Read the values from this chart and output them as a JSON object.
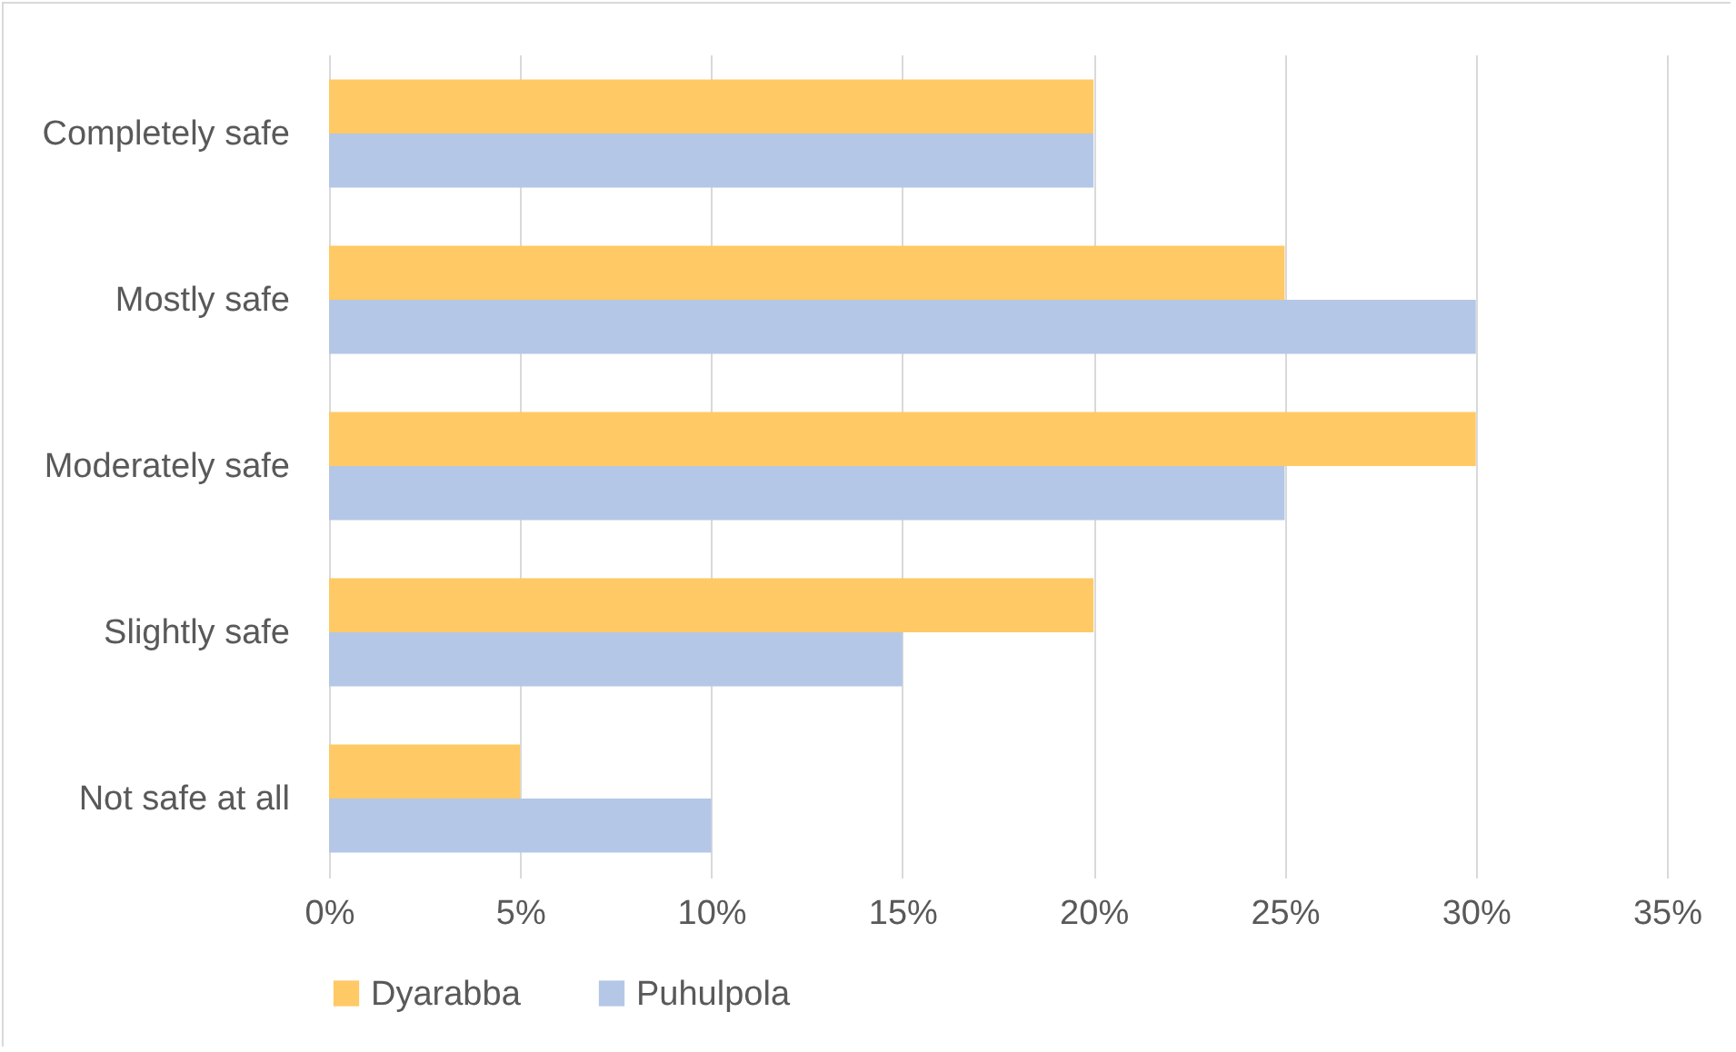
{
  "chart_data": {
    "type": "bar",
    "orientation": "horizontal",
    "categories": [
      "Completely safe",
      "Mostly safe",
      "Moderately safe",
      "Slightly safe",
      "Not safe at all"
    ],
    "series": [
      {
        "name": "Dyarabba",
        "color": "#ffc965",
        "values": [
          20,
          25,
          30,
          20,
          5
        ]
      },
      {
        "name": "Puhulpola",
        "color": "#b4c7e7",
        "values": [
          20,
          30,
          25,
          15,
          10
        ]
      }
    ],
    "xlim": [
      0,
      35
    ],
    "xticks": [
      {
        "value": 0,
        "label": "0%"
      },
      {
        "value": 5,
        "label": "5%"
      },
      {
        "value": 10,
        "label": "10%"
      },
      {
        "value": 15,
        "label": "15%"
      },
      {
        "value": 20,
        "label": "20%"
      },
      {
        "value": 25,
        "label": "25%"
      },
      {
        "value": 30,
        "label": "30%"
      },
      {
        "value": 35,
        "label": "35%"
      }
    ],
    "grid": "x",
    "legend": "bottom"
  }
}
